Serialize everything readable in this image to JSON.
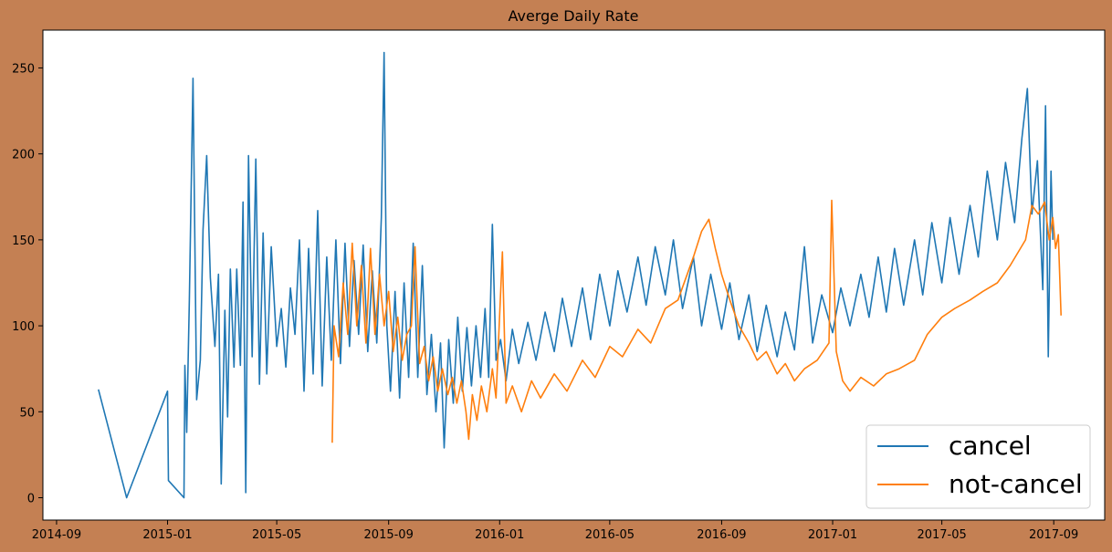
{
  "chart_data": {
    "type": "line",
    "title": "Averge Daily Rate",
    "xlabel": "",
    "ylabel": "",
    "x_ticks": [
      "2014-09",
      "2015-01",
      "2015-05",
      "2015-09",
      "2016-01",
      "2016-05",
      "2016-09",
      "2017-01",
      "2017-05",
      "2017-09"
    ],
    "y_ticks": [
      "0",
      "50",
      "100",
      "150",
      "200",
      "250"
    ],
    "xlim": [
      "2014-08-17",
      "2017-10-27"
    ],
    "ylim": [
      -13,
      272
    ],
    "legend_position": "bottom-right",
    "series": [
      {
        "name": "cancel",
        "color": "#1f77b4",
        "points": [
          [
            "2014-10-17",
            63
          ],
          [
            "2014-11-17",
            0
          ],
          [
            "2015-01-01",
            62
          ],
          [
            "2015-01-02",
            10
          ],
          [
            "2015-01-19",
            0
          ],
          [
            "2015-01-20",
            77
          ],
          [
            "2015-01-22",
            38
          ],
          [
            "2015-01-25",
            115
          ],
          [
            "2015-01-29",
            244
          ],
          [
            "2015-02-02",
            57
          ],
          [
            "2015-02-06",
            80
          ],
          [
            "2015-02-09",
            156
          ],
          [
            "2015-02-13",
            199
          ],
          [
            "2015-02-17",
            128
          ],
          [
            "2015-02-22",
            88
          ],
          [
            "2015-02-26",
            130
          ],
          [
            "2015-03-01",
            8
          ],
          [
            "2015-03-05",
            109
          ],
          [
            "2015-03-08",
            47
          ],
          [
            "2015-03-11",
            133
          ],
          [
            "2015-03-15",
            76
          ],
          [
            "2015-03-18",
            133
          ],
          [
            "2015-03-22",
            77
          ],
          [
            "2015-03-25",
            172
          ],
          [
            "2015-03-28",
            3
          ],
          [
            "2015-03-31",
            199
          ],
          [
            "2015-04-04",
            82
          ],
          [
            "2015-04-08",
            197
          ],
          [
            "2015-04-12",
            66
          ],
          [
            "2015-04-16",
            154
          ],
          [
            "2015-04-20",
            72
          ],
          [
            "2015-04-25",
            146
          ],
          [
            "2015-05-01",
            88
          ],
          [
            "2015-05-06",
            110
          ],
          [
            "2015-05-11",
            76
          ],
          [
            "2015-05-16",
            122
          ],
          [
            "2015-05-21",
            95
          ],
          [
            "2015-05-26",
            150
          ],
          [
            "2015-05-31",
            62
          ],
          [
            "2015-06-05",
            145
          ],
          [
            "2015-06-10",
            72
          ],
          [
            "2015-06-15",
            167
          ],
          [
            "2015-06-20",
            65
          ],
          [
            "2015-06-25",
            140
          ],
          [
            "2015-06-30",
            80
          ],
          [
            "2015-07-05",
            150
          ],
          [
            "2015-07-10",
            78
          ],
          [
            "2015-07-15",
            148
          ],
          [
            "2015-07-20",
            88
          ],
          [
            "2015-07-25",
            138
          ],
          [
            "2015-07-30",
            95
          ],
          [
            "2015-08-04",
            147
          ],
          [
            "2015-08-09",
            85
          ],
          [
            "2015-08-14",
            132
          ],
          [
            "2015-08-19",
            90
          ],
          [
            "2015-08-24",
            163
          ],
          [
            "2015-08-27",
            259
          ],
          [
            "2015-08-30",
            100
          ],
          [
            "2015-09-03",
            62
          ],
          [
            "2015-09-08",
            120
          ],
          [
            "2015-09-13",
            58
          ],
          [
            "2015-09-18",
            125
          ],
          [
            "2015-09-23",
            70
          ],
          [
            "2015-09-28",
            148
          ],
          [
            "2015-10-03",
            70
          ],
          [
            "2015-10-08",
            135
          ],
          [
            "2015-10-13",
            60
          ],
          [
            "2015-10-18",
            95
          ],
          [
            "2015-10-23",
            50
          ],
          [
            "2015-10-28",
            90
          ],
          [
            "2015-11-01",
            29
          ],
          [
            "2015-11-06",
            92
          ],
          [
            "2015-11-11",
            55
          ],
          [
            "2015-11-16",
            105
          ],
          [
            "2015-11-21",
            62
          ],
          [
            "2015-11-26",
            99
          ],
          [
            "2015-12-01",
            65
          ],
          [
            "2015-12-06",
            100
          ],
          [
            "2015-12-11",
            70
          ],
          [
            "2015-12-16",
            110
          ],
          [
            "2015-12-20",
            70
          ],
          [
            "2015-12-24",
            159
          ],
          [
            "2015-12-28",
            80
          ],
          [
            "2016-01-02",
            92
          ],
          [
            "2016-01-08",
            68
          ],
          [
            "2016-01-15",
            98
          ],
          [
            "2016-01-22",
            78
          ],
          [
            "2016-02-01",
            102
          ],
          [
            "2016-02-10",
            80
          ],
          [
            "2016-02-20",
            108
          ],
          [
            "2016-03-01",
            85
          ],
          [
            "2016-03-10",
            116
          ],
          [
            "2016-03-20",
            88
          ],
          [
            "2016-04-01",
            122
          ],
          [
            "2016-04-10",
            92
          ],
          [
            "2016-04-20",
            130
          ],
          [
            "2016-05-01",
            100
          ],
          [
            "2016-05-10",
            132
          ],
          [
            "2016-05-20",
            108
          ],
          [
            "2016-06-01",
            140
          ],
          [
            "2016-06-10",
            112
          ],
          [
            "2016-06-20",
            146
          ],
          [
            "2016-07-01",
            118
          ],
          [
            "2016-07-10",
            150
          ],
          [
            "2016-07-20",
            110
          ],
          [
            "2016-08-01",
            140
          ],
          [
            "2016-08-10",
            100
          ],
          [
            "2016-08-20",
            130
          ],
          [
            "2016-09-01",
            98
          ],
          [
            "2016-09-10",
            125
          ],
          [
            "2016-09-20",
            92
          ],
          [
            "2016-10-01",
            118
          ],
          [
            "2016-10-10",
            85
          ],
          [
            "2016-10-20",
            112
          ],
          [
            "2016-11-01",
            82
          ],
          [
            "2016-11-10",
            108
          ],
          [
            "2016-11-20",
            86
          ],
          [
            "2016-12-01",
            146
          ],
          [
            "2016-12-10",
            90
          ],
          [
            "2016-12-20",
            118
          ],
          [
            "2017-01-01",
            96
          ],
          [
            "2017-01-10",
            122
          ],
          [
            "2017-01-20",
            100
          ],
          [
            "2017-02-01",
            130
          ],
          [
            "2017-02-10",
            105
          ],
          [
            "2017-02-20",
            140
          ],
          [
            "2017-03-01",
            108
          ],
          [
            "2017-03-10",
            145
          ],
          [
            "2017-03-20",
            112
          ],
          [
            "2017-04-01",
            150
          ],
          [
            "2017-04-10",
            118
          ],
          [
            "2017-04-20",
            160
          ],
          [
            "2017-05-01",
            125
          ],
          [
            "2017-05-10",
            163
          ],
          [
            "2017-05-20",
            130
          ],
          [
            "2017-06-01",
            170
          ],
          [
            "2017-06-10",
            140
          ],
          [
            "2017-06-20",
            190
          ],
          [
            "2017-07-01",
            150
          ],
          [
            "2017-07-10",
            195
          ],
          [
            "2017-07-20",
            160
          ],
          [
            "2017-07-28",
            209
          ],
          [
            "2017-08-03",
            238
          ],
          [
            "2017-08-08",
            165
          ],
          [
            "2017-08-14",
            196
          ],
          [
            "2017-08-20",
            121
          ],
          [
            "2017-08-23",
            228
          ],
          [
            "2017-08-26",
            82
          ],
          [
            "2017-08-29",
            190
          ],
          [
            "2017-08-31",
            150
          ]
        ]
      },
      {
        "name": "not-cancel",
        "color": "#ff7f0e",
        "points": [
          [
            "2015-07-01",
            32
          ],
          [
            "2015-07-03",
            100
          ],
          [
            "2015-07-08",
            82
          ],
          [
            "2015-07-13",
            125
          ],
          [
            "2015-07-18",
            95
          ],
          [
            "2015-07-23",
            148
          ],
          [
            "2015-07-28",
            100
          ],
          [
            "2015-08-02",
            135
          ],
          [
            "2015-08-07",
            90
          ],
          [
            "2015-08-12",
            145
          ],
          [
            "2015-08-17",
            95
          ],
          [
            "2015-08-22",
            130
          ],
          [
            "2015-08-27",
            100
          ],
          [
            "2015-09-01",
            120
          ],
          [
            "2015-09-06",
            85
          ],
          [
            "2015-09-11",
            105
          ],
          [
            "2015-09-16",
            80
          ],
          [
            "2015-09-21",
            95
          ],
          [
            "2015-09-26",
            100
          ],
          [
            "2015-09-30",
            146
          ],
          [
            "2015-10-05",
            78
          ],
          [
            "2015-10-10",
            88
          ],
          [
            "2015-10-15",
            68
          ],
          [
            "2015-10-20",
            82
          ],
          [
            "2015-10-25",
            62
          ],
          [
            "2015-10-30",
            75
          ],
          [
            "2015-11-05",
            60
          ],
          [
            "2015-11-10",
            70
          ],
          [
            "2015-11-15",
            55
          ],
          [
            "2015-11-20",
            68
          ],
          [
            "2015-11-25",
            50
          ],
          [
            "2015-11-28",
            34
          ],
          [
            "2015-12-02",
            60
          ],
          [
            "2015-12-07",
            45
          ],
          [
            "2015-12-12",
            65
          ],
          [
            "2015-12-18",
            50
          ],
          [
            "2015-12-24",
            75
          ],
          [
            "2015-12-28",
            58
          ],
          [
            "2016-01-04",
            143
          ],
          [
            "2016-01-08",
            55
          ],
          [
            "2016-01-15",
            65
          ],
          [
            "2016-01-25",
            50
          ],
          [
            "2016-02-05",
            68
          ],
          [
            "2016-02-15",
            58
          ],
          [
            "2016-03-01",
            72
          ],
          [
            "2016-03-15",
            62
          ],
          [
            "2016-04-01",
            80
          ],
          [
            "2016-04-15",
            70
          ],
          [
            "2016-05-01",
            88
          ],
          [
            "2016-05-15",
            82
          ],
          [
            "2016-06-01",
            98
          ],
          [
            "2016-06-15",
            90
          ],
          [
            "2016-07-01",
            110
          ],
          [
            "2016-07-15",
            115
          ],
          [
            "2016-08-01",
            140
          ],
          [
            "2016-08-10",
            155
          ],
          [
            "2016-08-18",
            162
          ],
          [
            "2016-08-25",
            145
          ],
          [
            "2016-09-01",
            130
          ],
          [
            "2016-09-10",
            115
          ],
          [
            "2016-09-20",
            100
          ],
          [
            "2016-10-01",
            90
          ],
          [
            "2016-10-10",
            80
          ],
          [
            "2016-10-20",
            85
          ],
          [
            "2016-11-01",
            72
          ],
          [
            "2016-11-10",
            78
          ],
          [
            "2016-11-20",
            68
          ],
          [
            "2016-12-01",
            75
          ],
          [
            "2016-12-15",
            80
          ],
          [
            "2016-12-28",
            90
          ],
          [
            "2016-12-31",
            173
          ],
          [
            "2017-01-05",
            85
          ],
          [
            "2017-01-12",
            68
          ],
          [
            "2017-01-20",
            62
          ],
          [
            "2017-02-01",
            70
          ],
          [
            "2017-02-15",
            65
          ],
          [
            "2017-03-01",
            72
          ],
          [
            "2017-03-15",
            75
          ],
          [
            "2017-04-01",
            80
          ],
          [
            "2017-04-15",
            95
          ],
          [
            "2017-05-01",
            105
          ],
          [
            "2017-05-15",
            110
          ],
          [
            "2017-06-01",
            115
          ],
          [
            "2017-06-15",
            120
          ],
          [
            "2017-07-01",
            125
          ],
          [
            "2017-07-15",
            135
          ],
          [
            "2017-08-01",
            150
          ],
          [
            "2017-08-08",
            170
          ],
          [
            "2017-08-15",
            165
          ],
          [
            "2017-08-22",
            172
          ],
          [
            "2017-08-27",
            150
          ],
          [
            "2017-08-31",
            163
          ],
          [
            "2017-09-03",
            145
          ],
          [
            "2017-09-06",
            153
          ],
          [
            "2017-09-09",
            106
          ]
        ]
      }
    ]
  }
}
